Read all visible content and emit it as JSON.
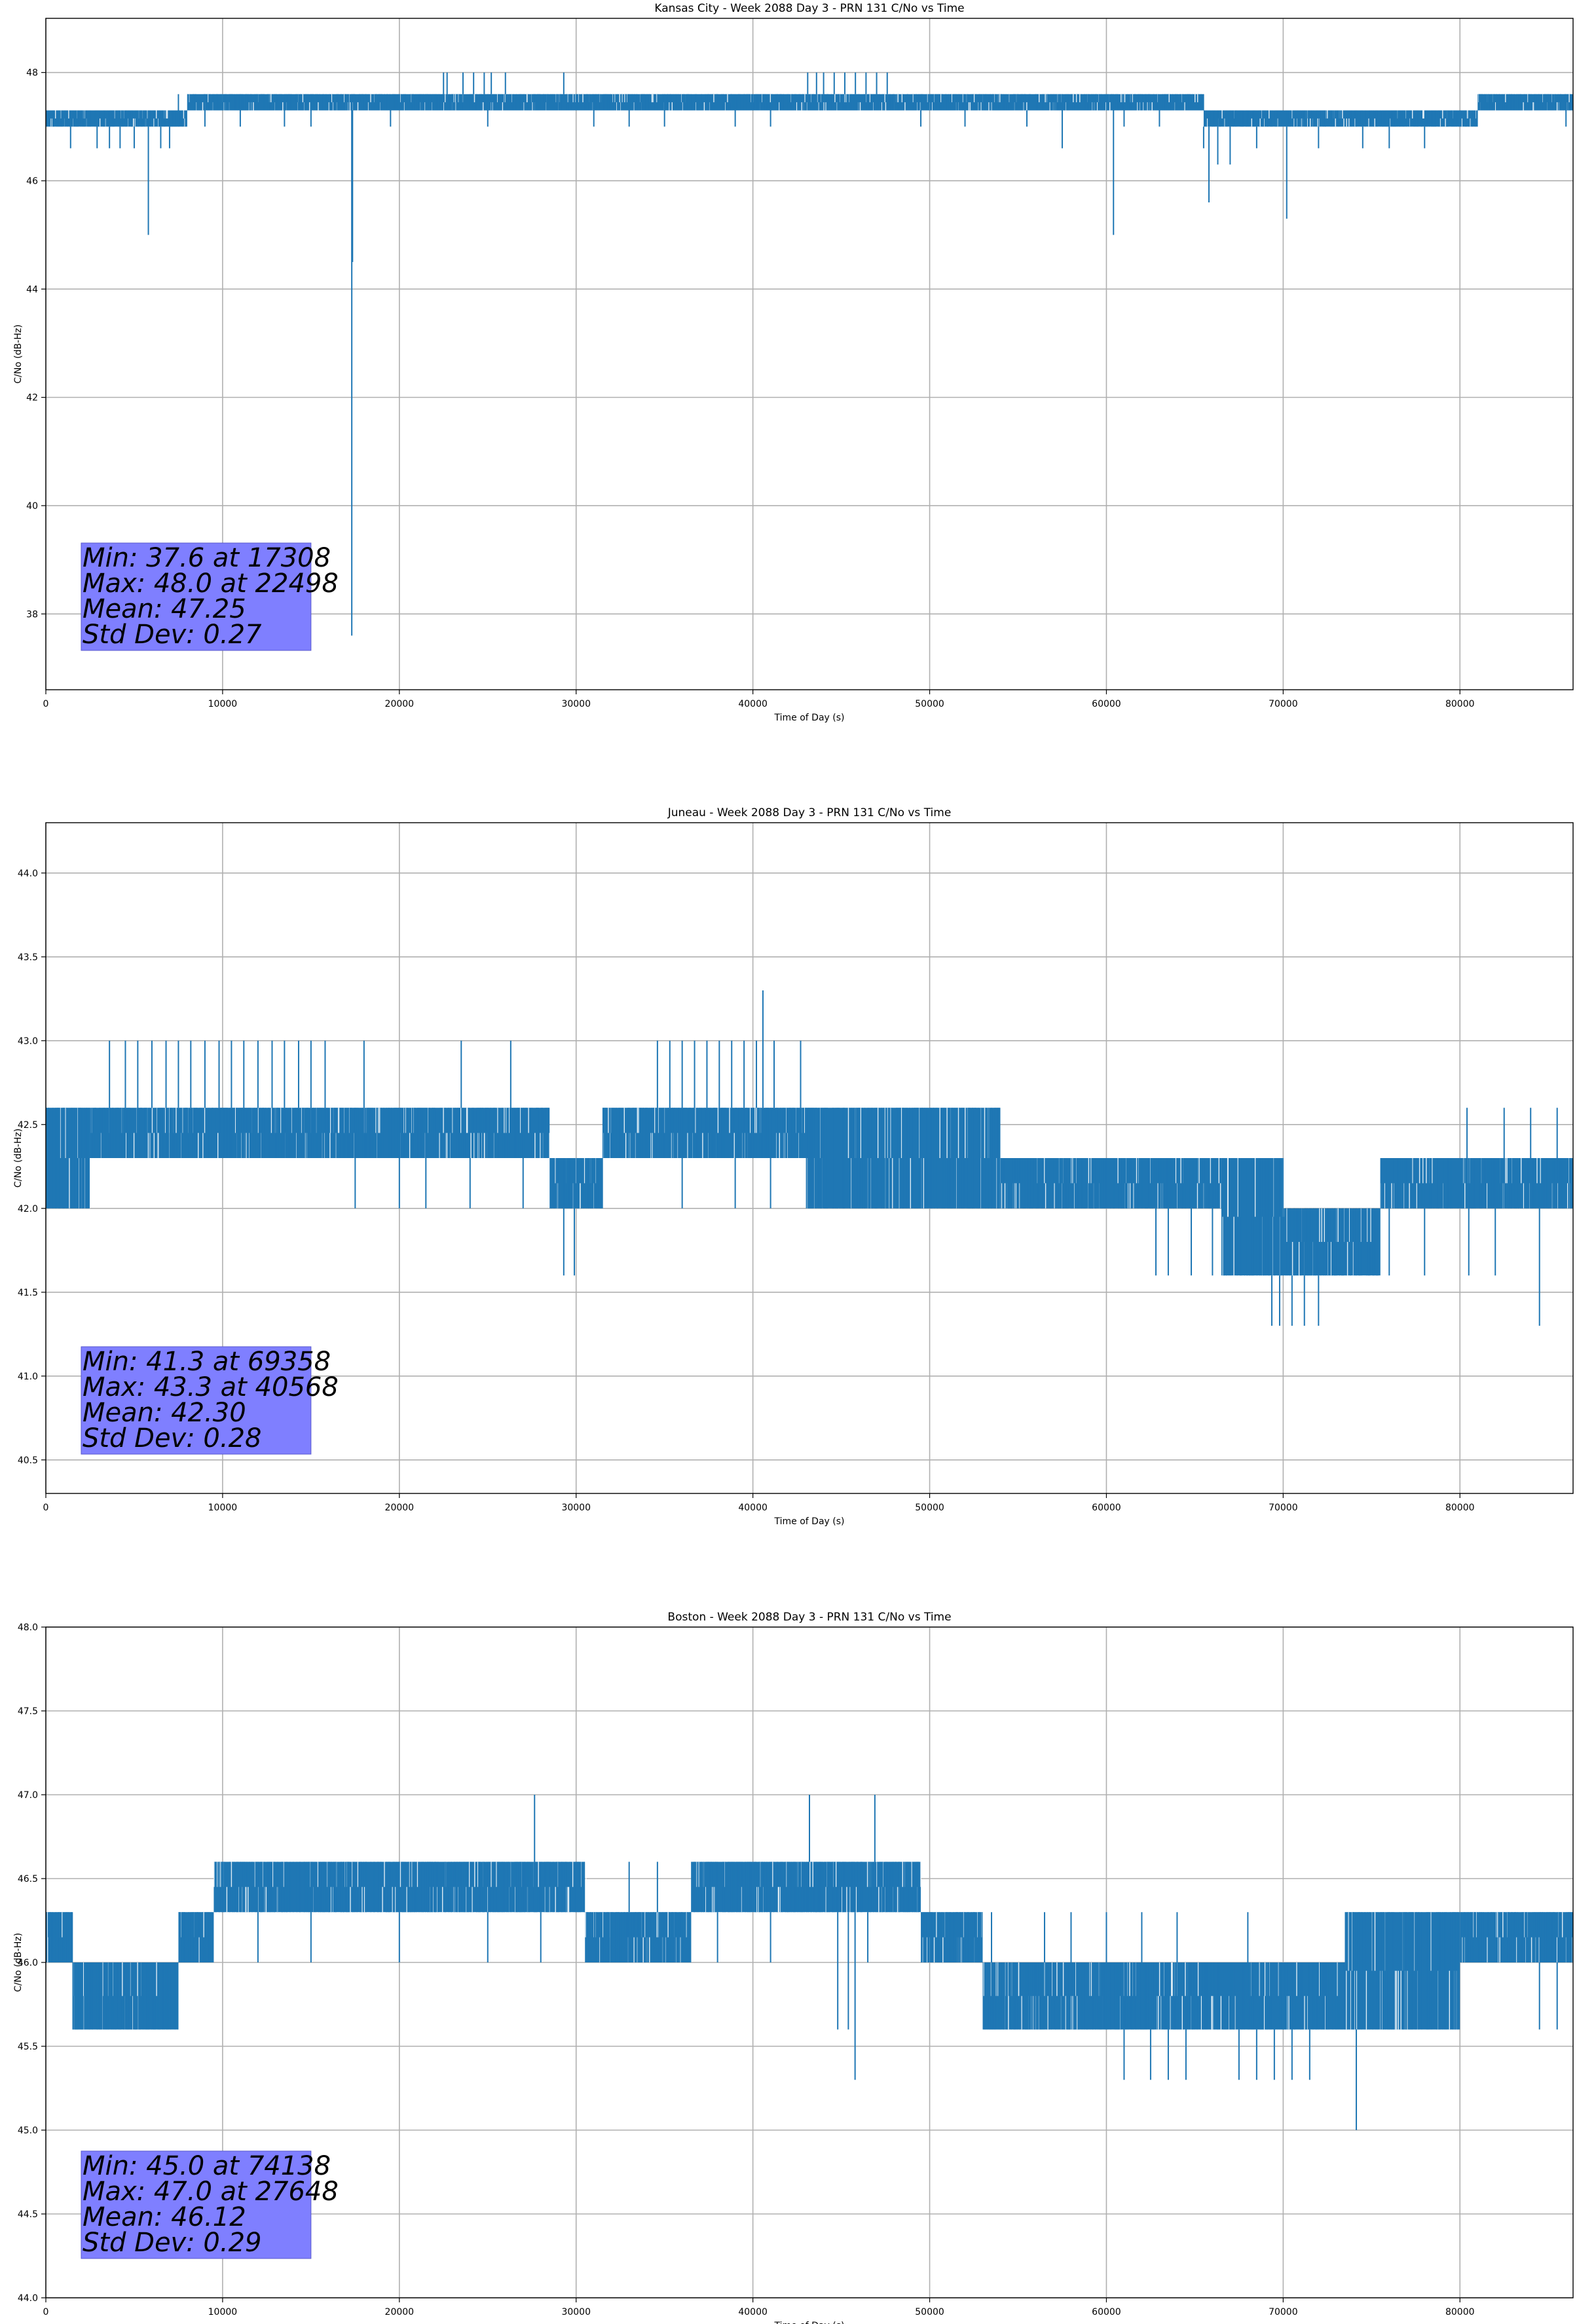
{
  "chart_data": [
    {
      "type": "line",
      "title": "Kansas City - Week 2088 Day 3 - PRN 131 C/No vs Time",
      "xlabel": "Time of Day (s)",
      "ylabel": "C/No (dB-Hz)",
      "xlim": [
        0,
        86400
      ],
      "ylim": [
        36.6,
        49.0
      ],
      "xticks": [
        0,
        10000,
        20000,
        30000,
        40000,
        50000,
        60000,
        70000,
        80000
      ],
      "yticks": [
        38,
        40,
        42,
        44,
        46,
        48
      ],
      "grid": true,
      "color": "#1f77b4",
      "band_segments": [
        {
          "x0": 0,
          "x1": 8000,
          "levels": [
            47.0,
            47.3
          ]
        },
        {
          "x0": 8000,
          "x1": 22000,
          "levels": [
            47.3,
            47.6
          ]
        },
        {
          "x0": 22000,
          "x1": 29000,
          "levels": [
            47.3,
            47.6
          ]
        },
        {
          "x0": 29000,
          "x1": 43000,
          "levels": [
            47.3,
            47.6
          ]
        },
        {
          "x0": 43000,
          "x1": 48000,
          "levels": [
            47.3,
            47.6
          ]
        },
        {
          "x0": 48000,
          "x1": 65500,
          "levels": [
            47.3,
            47.6
          ]
        },
        {
          "x0": 65500,
          "x1": 81000,
          "levels": [
            47.0,
            47.3
          ]
        },
        {
          "x0": 81000,
          "x1": 86400,
          "levels": [
            47.3,
            47.6
          ]
        }
      ],
      "dips": [
        {
          "x": 1400,
          "y": 46.6
        },
        {
          "x": 2900,
          "y": 46.6
        },
        {
          "x": 3600,
          "y": 46.6
        },
        {
          "x": 4200,
          "y": 46.6
        },
        {
          "x": 5000,
          "y": 46.6
        },
        {
          "x": 5800,
          "y": 45.0
        },
        {
          "x": 6500,
          "y": 46.6
        },
        {
          "x": 7000,
          "y": 46.6
        },
        {
          "x": 17308,
          "y": 37.6
        },
        {
          "x": 17350,
          "y": 44.5
        },
        {
          "x": 9000,
          "y": 47.0
        },
        {
          "x": 11000,
          "y": 47.0
        },
        {
          "x": 13500,
          "y": 47.0
        },
        {
          "x": 15000,
          "y": 47.0
        },
        {
          "x": 19500,
          "y": 47.0
        },
        {
          "x": 25000,
          "y": 47.0
        },
        {
          "x": 31000,
          "y": 47.0
        },
        {
          "x": 33000,
          "y": 47.0
        },
        {
          "x": 35000,
          "y": 47.0
        },
        {
          "x": 39000,
          "y": 47.0
        },
        {
          "x": 41000,
          "y": 47.0
        },
        {
          "x": 49500,
          "y": 47.0
        },
        {
          "x": 52000,
          "y": 47.0
        },
        {
          "x": 55500,
          "y": 47.0
        },
        {
          "x": 57500,
          "y": 46.6
        },
        {
          "x": 60400,
          "y": 45.0
        },
        {
          "x": 61000,
          "y": 47.0
        },
        {
          "x": 63000,
          "y": 47.0
        },
        {
          "x": 65500,
          "y": 46.6
        },
        {
          "x": 65800,
          "y": 45.6
        },
        {
          "x": 66300,
          "y": 46.3
        },
        {
          "x": 67000,
          "y": 46.3
        },
        {
          "x": 68500,
          "y": 46.6
        },
        {
          "x": 70200,
          "y": 45.3
        },
        {
          "x": 72000,
          "y": 46.6
        },
        {
          "x": 74500,
          "y": 46.6
        },
        {
          "x": 76000,
          "y": 46.6
        },
        {
          "x": 78000,
          "y": 46.6
        },
        {
          "x": 86000,
          "y": 47.0
        }
      ],
      "spikes": [
        {
          "x": 7500,
          "y": 47.6
        },
        {
          "x": 22498,
          "y": 48.0
        },
        {
          "x": 22700,
          "y": 48.0
        },
        {
          "x": 23600,
          "y": 48.0
        },
        {
          "x": 24200,
          "y": 48.0
        },
        {
          "x": 24800,
          "y": 48.0
        },
        {
          "x": 25200,
          "y": 48.0
        },
        {
          "x": 26000,
          "y": 48.0
        },
        {
          "x": 29300,
          "y": 48.0
        },
        {
          "x": 43100,
          "y": 48.0
        },
        {
          "x": 43600,
          "y": 48.0
        },
        {
          "x": 44000,
          "y": 48.0
        },
        {
          "x": 44600,
          "y": 48.0
        },
        {
          "x": 45200,
          "y": 48.0
        },
        {
          "x": 45800,
          "y": 48.0
        },
        {
          "x": 46400,
          "y": 48.0
        },
        {
          "x": 47000,
          "y": 48.0
        },
        {
          "x": 47600,
          "y": 48.0
        },
        {
          "x": 58500,
          "y": 47.6
        },
        {
          "x": 59000,
          "y": 47.6
        }
      ],
      "stats": {
        "min_line": "Min: 37.6 at 17308",
        "max_line": "Max: 48.0 at 22498",
        "mean_line": "Mean: 47.25",
        "std_line": "Std Dev: 0.27"
      }
    },
    {
      "type": "line",
      "title": "Juneau - Week 2088 Day 3 - PRN 131 C/No vs Time",
      "xlabel": "Time of Day (s)",
      "ylabel": "C/No (dB-Hz)",
      "xlim": [
        0,
        86400
      ],
      "ylim": [
        40.3,
        44.3
      ],
      "xticks": [
        0,
        10000,
        20000,
        30000,
        40000,
        50000,
        60000,
        70000,
        80000
      ],
      "yticks": [
        40.5,
        41.0,
        41.5,
        42.0,
        42.5,
        43.0,
        43.5,
        44.0
      ],
      "grid": true,
      "color": "#1f77b4",
      "band_segments": [
        {
          "x0": 0,
          "x1": 2500,
          "levels": [
            42.0,
            42.6
          ]
        },
        {
          "x0": 2500,
          "x1": 28500,
          "levels": [
            42.3,
            42.6
          ]
        },
        {
          "x0": 28500,
          "x1": 31500,
          "levels": [
            42.0,
            42.3
          ]
        },
        {
          "x0": 31500,
          "x1": 43000,
          "levels": [
            42.3,
            42.6
          ]
        },
        {
          "x0": 43000,
          "x1": 54000,
          "levels": [
            42.0,
            42.6
          ]
        },
        {
          "x0": 54000,
          "x1": 66500,
          "levels": [
            42.0,
            42.3
          ]
        },
        {
          "x0": 66500,
          "x1": 70000,
          "levels": [
            41.6,
            42.3
          ]
        },
        {
          "x0": 70000,
          "x1": 75500,
          "levels": [
            41.6,
            42.0
          ]
        },
        {
          "x0": 75500,
          "x1": 86400,
          "levels": [
            42.0,
            42.3
          ]
        }
      ],
      "dips": [
        {
          "x": 1000,
          "y": 42.0
        },
        {
          "x": 17500,
          "y": 42.0
        },
        {
          "x": 20000,
          "y": 42.0
        },
        {
          "x": 21500,
          "y": 42.0
        },
        {
          "x": 24000,
          "y": 42.0
        },
        {
          "x": 27000,
          "y": 42.0
        },
        {
          "x": 29300,
          "y": 41.6
        },
        {
          "x": 29900,
          "y": 41.6
        },
        {
          "x": 36000,
          "y": 42.0
        },
        {
          "x": 39000,
          "y": 42.0
        },
        {
          "x": 41000,
          "y": 42.0
        },
        {
          "x": 45000,
          "y": 42.0
        },
        {
          "x": 49000,
          "y": 42.0
        },
        {
          "x": 52000,
          "y": 42.0
        },
        {
          "x": 62800,
          "y": 41.6
        },
        {
          "x": 63500,
          "y": 41.6
        },
        {
          "x": 64800,
          "y": 41.6
        },
        {
          "x": 66000,
          "y": 41.6
        },
        {
          "x": 67500,
          "y": 41.6
        },
        {
          "x": 69358,
          "y": 41.3
        },
        {
          "x": 69800,
          "y": 41.3
        },
        {
          "x": 70500,
          "y": 41.3
        },
        {
          "x": 71200,
          "y": 41.3
        },
        {
          "x": 72000,
          "y": 41.3
        },
        {
          "x": 74000,
          "y": 41.6
        },
        {
          "x": 76000,
          "y": 41.6
        },
        {
          "x": 78000,
          "y": 41.6
        },
        {
          "x": 80500,
          "y": 41.6
        },
        {
          "x": 82000,
          "y": 41.6
        },
        {
          "x": 84500,
          "y": 41.3
        }
      ],
      "spikes": [
        {
          "x": 3600,
          "y": 43.0
        },
        {
          "x": 4500,
          "y": 43.0
        },
        {
          "x": 5200,
          "y": 43.0
        },
        {
          "x": 6000,
          "y": 43.0
        },
        {
          "x": 6800,
          "y": 43.0
        },
        {
          "x": 7500,
          "y": 43.0
        },
        {
          "x": 8200,
          "y": 43.0
        },
        {
          "x": 9000,
          "y": 43.0
        },
        {
          "x": 9800,
          "y": 43.0
        },
        {
          "x": 10500,
          "y": 43.0
        },
        {
          "x": 11200,
          "y": 43.0
        },
        {
          "x": 12000,
          "y": 43.0
        },
        {
          "x": 12800,
          "y": 43.0
        },
        {
          "x": 13500,
          "y": 43.0
        },
        {
          "x": 14300,
          "y": 43.0
        },
        {
          "x": 15000,
          "y": 43.0
        },
        {
          "x": 15800,
          "y": 43.0
        },
        {
          "x": 18000,
          "y": 43.0
        },
        {
          "x": 23500,
          "y": 43.0
        },
        {
          "x": 26300,
          "y": 43.0
        },
        {
          "x": 34600,
          "y": 43.0
        },
        {
          "x": 35300,
          "y": 43.0
        },
        {
          "x": 36000,
          "y": 43.0
        },
        {
          "x": 36700,
          "y": 43.0
        },
        {
          "x": 37400,
          "y": 43.0
        },
        {
          "x": 38100,
          "y": 43.0
        },
        {
          "x": 38800,
          "y": 43.0
        },
        {
          "x": 39500,
          "y": 43.0
        },
        {
          "x": 40200,
          "y": 43.0
        },
        {
          "x": 40568,
          "y": 43.3
        },
        {
          "x": 41200,
          "y": 43.0
        },
        {
          "x": 42700,
          "y": 43.0
        },
        {
          "x": 80400,
          "y": 42.6
        },
        {
          "x": 82500,
          "y": 42.6
        },
        {
          "x": 84000,
          "y": 42.6
        },
        {
          "x": 85500,
          "y": 42.6
        }
      ],
      "stats": {
        "min_line": "Min: 41.3 at 69358",
        "max_line": "Max: 43.3 at 40568",
        "mean_line": "Mean: 42.30",
        "std_line": "Std Dev: 0.28"
      }
    },
    {
      "type": "line",
      "title": "Boston - Week 2088 Day 3 - PRN 131 C/No vs Time",
      "xlabel": "Time of Day (s)",
      "ylabel": "C/No (dB-Hz)",
      "xlim": [
        0,
        86400
      ],
      "ylim": [
        44.0,
        48.0
      ],
      "xticks": [
        0,
        10000,
        20000,
        30000,
        40000,
        50000,
        60000,
        70000,
        80000
      ],
      "yticks": [
        44.0,
        44.5,
        45.0,
        45.5,
        46.0,
        46.5,
        47.0,
        47.5,
        48.0
      ],
      "grid": true,
      "color": "#1f77b4",
      "band_segments": [
        {
          "x0": 0,
          "x1": 1500,
          "levels": [
            46.0,
            46.3
          ]
        },
        {
          "x0": 1500,
          "x1": 7500,
          "levels": [
            45.6,
            46.0
          ]
        },
        {
          "x0": 7500,
          "x1": 9500,
          "levels": [
            46.0,
            46.3
          ]
        },
        {
          "x0": 9500,
          "x1": 30500,
          "levels": [
            46.3,
            46.6
          ]
        },
        {
          "x0": 30500,
          "x1": 36500,
          "levels": [
            46.0,
            46.3
          ]
        },
        {
          "x0": 36500,
          "x1": 49500,
          "levels": [
            46.3,
            46.6
          ]
        },
        {
          "x0": 49500,
          "x1": 53000,
          "levels": [
            46.0,
            46.3
          ]
        },
        {
          "x0": 53000,
          "x1": 73500,
          "levels": [
            45.6,
            46.0
          ]
        },
        {
          "x0": 73500,
          "x1": 80000,
          "levels": [
            45.6,
            46.3
          ]
        },
        {
          "x0": 80000,
          "x1": 86400,
          "levels": [
            46.0,
            46.3
          ]
        }
      ],
      "dips": [
        {
          "x": 1800,
          "y": 45.6
        },
        {
          "x": 8200,
          "y": 46.0
        },
        {
          "x": 12000,
          "y": 46.0
        },
        {
          "x": 15000,
          "y": 46.0
        },
        {
          "x": 20000,
          "y": 46.0
        },
        {
          "x": 25000,
          "y": 46.0
        },
        {
          "x": 28000,
          "y": 46.0
        },
        {
          "x": 38000,
          "y": 46.0
        },
        {
          "x": 41000,
          "y": 46.0
        },
        {
          "x": 44800,
          "y": 45.6
        },
        {
          "x": 45400,
          "y": 45.6
        },
        {
          "x": 45780,
          "y": 45.3
        },
        {
          "x": 46500,
          "y": 46.0
        },
        {
          "x": 55000,
          "y": 45.6
        },
        {
          "x": 57000,
          "y": 45.6
        },
        {
          "x": 61000,
          "y": 45.3
        },
        {
          "x": 62500,
          "y": 45.3
        },
        {
          "x": 63500,
          "y": 45.3
        },
        {
          "x": 64500,
          "y": 45.3
        },
        {
          "x": 67500,
          "y": 45.3
        },
        {
          "x": 68500,
          "y": 45.3
        },
        {
          "x": 69500,
          "y": 45.3
        },
        {
          "x": 70500,
          "y": 45.3
        },
        {
          "x": 71500,
          "y": 45.3
        },
        {
          "x": 74138,
          "y": 45.0
        },
        {
          "x": 76500,
          "y": 45.6
        },
        {
          "x": 78500,
          "y": 45.6
        },
        {
          "x": 84500,
          "y": 45.6
        },
        {
          "x": 85500,
          "y": 45.6
        }
      ],
      "spikes": [
        {
          "x": 27648,
          "y": 47.0
        },
        {
          "x": 33000,
          "y": 46.6
        },
        {
          "x": 34600,
          "y": 46.6
        },
        {
          "x": 43200,
          "y": 47.0
        },
        {
          "x": 46900,
          "y": 47.0
        },
        {
          "x": 53500,
          "y": 46.3
        },
        {
          "x": 56500,
          "y": 46.3
        },
        {
          "x": 58000,
          "y": 46.3
        },
        {
          "x": 60000,
          "y": 46.3
        },
        {
          "x": 62000,
          "y": 46.3
        },
        {
          "x": 64000,
          "y": 46.3
        },
        {
          "x": 68000,
          "y": 46.3
        }
      ],
      "stats": {
        "min_line": "Min: 45.0 at 74138",
        "max_line": "Max: 47.0 at 27648",
        "mean_line": "Mean: 46.12",
        "std_line": "Std Dev: 0.29"
      }
    }
  ]
}
